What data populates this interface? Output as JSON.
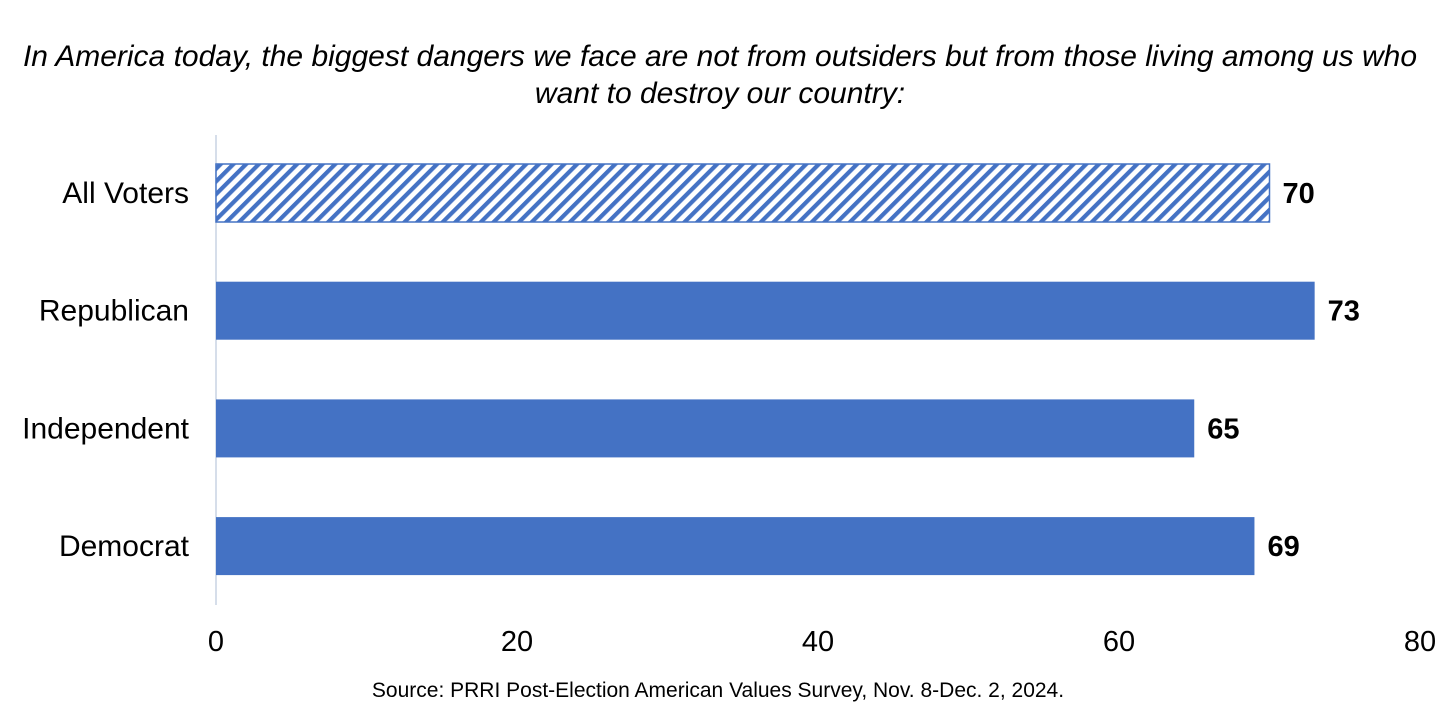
{
  "chart_data": {
    "type": "bar",
    "orientation": "horizontal",
    "title": "In America today, the biggest dangers we face are not from outsiders but from those living among us who want to destroy our country:",
    "categories": [
      "All Voters",
      "Republican",
      "Independent",
      "Democrat"
    ],
    "values": [
      70,
      73,
      65,
      69
    ],
    "value_labels": [
      "70",
      "73",
      "65",
      "69"
    ],
    "bar_styles": [
      "hatched",
      "solid",
      "solid",
      "solid"
    ],
    "xlim": [
      0,
      80
    ],
    "x_ticks": [
      0,
      20,
      40,
      60,
      80
    ],
    "x_tick_labels": [
      "0",
      "20",
      "40",
      "60",
      "80"
    ],
    "xlabel": "",
    "ylabel": "",
    "grid": false,
    "legend": "none",
    "bar_color": "#4472C4",
    "source": "Source: PRRI Post-Election American Values Survey, Nov. 8-Dec. 2, 2024."
  }
}
